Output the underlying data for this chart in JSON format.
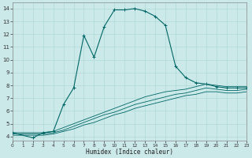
{
  "xlabel": "Humidex (Indice chaleur)",
  "bg_color": "#cce9e9",
  "grid_color": "#b0d8d8",
  "line_color": "#006666",
  "xlim": [
    0,
    23
  ],
  "ylim": [
    3.7,
    14.5
  ],
  "xticks": [
    0,
    1,
    2,
    3,
    4,
    5,
    6,
    7,
    8,
    9,
    10,
    11,
    12,
    13,
    14,
    15,
    16,
    17,
    18,
    19,
    20,
    21,
    22,
    23
  ],
  "yticks": [
    4,
    5,
    6,
    7,
    8,
    9,
    10,
    11,
    12,
    13,
    14
  ],
  "series": [
    {
      "x": [
        0,
        2,
        3,
        4,
        5,
        6,
        7,
        8,
        9,
        10,
        11,
        12,
        13,
        14,
        15,
        16,
        17,
        18,
        19,
        20,
        21,
        22,
        23
      ],
      "y": [
        4.3,
        3.9,
        4.3,
        4.4,
        6.5,
        7.8,
        11.9,
        10.2,
        12.6,
        13.9,
        13.9,
        14.0,
        13.8,
        13.4,
        12.7,
        9.5,
        8.6,
        8.2,
        8.1,
        7.9,
        7.8,
        7.8,
        7.8
      ],
      "has_marker": true
    },
    {
      "x": [
        0,
        3,
        4,
        5,
        6,
        7,
        8,
        9,
        10,
        11,
        12,
        13,
        14,
        15,
        16,
        17,
        18,
        19,
        20,
        21,
        22,
        23
      ],
      "y": [
        4.3,
        4.3,
        4.4,
        4.7,
        5.0,
        5.3,
        5.6,
        5.9,
        6.2,
        6.5,
        6.8,
        7.1,
        7.3,
        7.5,
        7.6,
        7.7,
        7.9,
        8.1,
        8.0,
        7.9,
        7.9,
        7.9
      ],
      "has_marker": false
    },
    {
      "x": [
        0,
        3,
        4,
        5,
        6,
        7,
        8,
        9,
        10,
        11,
        12,
        13,
        14,
        15,
        16,
        17,
        18,
        19,
        20,
        21,
        22,
        23
      ],
      "y": [
        4.2,
        4.2,
        4.3,
        4.5,
        4.8,
        5.1,
        5.4,
        5.7,
        5.9,
        6.2,
        6.5,
        6.7,
        6.9,
        7.1,
        7.3,
        7.4,
        7.6,
        7.8,
        7.7,
        7.6,
        7.6,
        7.7
      ],
      "has_marker": false
    },
    {
      "x": [
        0,
        3,
        4,
        5,
        6,
        7,
        8,
        9,
        10,
        11,
        12,
        13,
        14,
        15,
        16,
        17,
        18,
        19,
        20,
        21,
        22,
        23
      ],
      "y": [
        4.1,
        4.1,
        4.2,
        4.4,
        4.6,
        4.9,
        5.1,
        5.4,
        5.7,
        5.9,
        6.2,
        6.4,
        6.6,
        6.8,
        7.0,
        7.2,
        7.3,
        7.5,
        7.5,
        7.4,
        7.4,
        7.5
      ],
      "has_marker": false
    }
  ]
}
